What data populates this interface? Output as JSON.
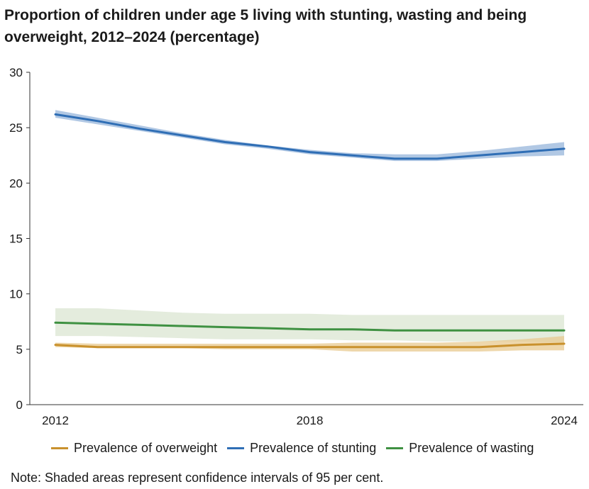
{
  "chart_data": {
    "type": "line",
    "title": "Proportion of children under age 5 living with stunting, wasting and being overweight, 2012–2024 (percentage)",
    "x": [
      2012,
      2013,
      2014,
      2015,
      2016,
      2017,
      2018,
      2019,
      2020,
      2021,
      2022,
      2023,
      2024
    ],
    "x_tick_labels": [
      "2012",
      "2018",
      "2024"
    ],
    "x_ticks": [
      2012,
      2018,
      2024
    ],
    "ylim": [
      0,
      30
    ],
    "y_ticks": [
      0,
      5,
      10,
      15,
      20,
      25,
      30
    ],
    "grid": false,
    "legend_position": "bottom",
    "series": [
      {
        "name": "Prevalence of overweight",
        "color": "#c9912d",
        "band_color": "#e8c98f",
        "values": [
          5.4,
          5.2,
          5.2,
          5.2,
          5.2,
          5.2,
          5.2,
          5.2,
          5.2,
          5.2,
          5.2,
          5.4,
          5.5
        ],
        "lower": [
          5.2,
          5.1,
          5.1,
          5.1,
          5.0,
          5.0,
          5.0,
          4.8,
          4.8,
          4.8,
          4.8,
          4.9,
          4.9
        ],
        "upper": [
          5.6,
          5.5,
          5.5,
          5.5,
          5.5,
          5.5,
          5.5,
          5.6,
          5.6,
          5.6,
          5.7,
          5.9,
          6.2
        ]
      },
      {
        "name": "Prevalence of stunting",
        "color": "#2f6eb5",
        "band_color": "#a3bedf",
        "values": [
          26.2,
          25.6,
          24.9,
          24.3,
          23.7,
          23.3,
          22.8,
          22.5,
          22.2,
          22.2,
          22.5,
          22.8,
          23.1
        ],
        "lower": [
          25.9,
          25.3,
          24.7,
          24.1,
          23.5,
          23.1,
          22.6,
          22.3,
          22.0,
          22.0,
          22.2,
          22.4,
          22.5
        ],
        "upper": [
          26.6,
          25.9,
          25.2,
          24.5,
          23.9,
          23.4,
          23.0,
          22.7,
          22.6,
          22.6,
          22.9,
          23.3,
          23.7
        ]
      },
      {
        "name": "Prevalence of wasting",
        "color": "#3f9142",
        "band_color": "#dbe6d2",
        "values": [
          7.4,
          7.3,
          7.2,
          7.1,
          7.0,
          6.9,
          6.8,
          6.8,
          6.7,
          6.7,
          6.7,
          6.7,
          6.7
        ],
        "lower": [
          6.2,
          6.2,
          6.1,
          6.0,
          5.9,
          5.9,
          5.9,
          5.8,
          5.8,
          5.7,
          5.7,
          5.7,
          5.6
        ],
        "upper": [
          8.7,
          8.7,
          8.5,
          8.3,
          8.2,
          8.2,
          8.2,
          8.1,
          8.1,
          8.1,
          8.1,
          8.1,
          8.1
        ]
      }
    ]
  },
  "note": "Note: Shaded areas represent confidence intervals of 95 per cent."
}
